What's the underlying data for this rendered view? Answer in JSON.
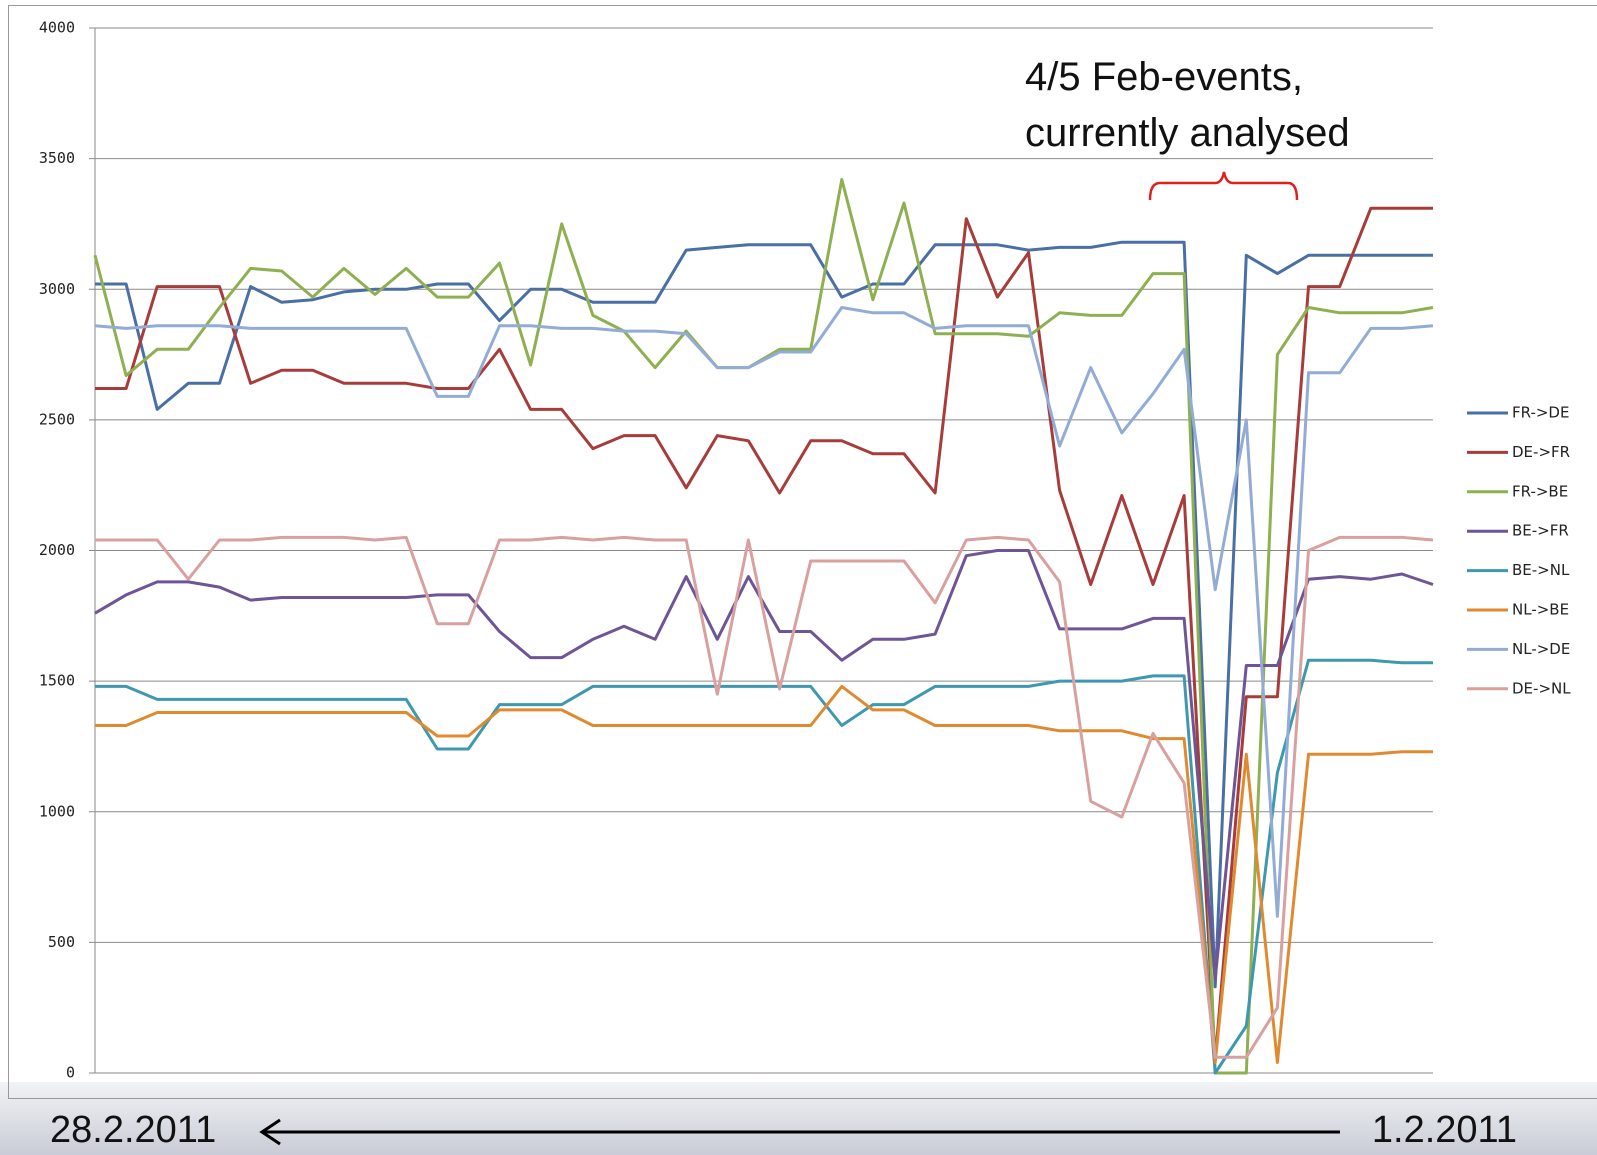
{
  "chart_data": {
    "type": "line",
    "annotations": [
      "4/5 Feb-events,",
      "currently analysed"
    ],
    "footer": {
      "left": "28.2.2011",
      "right": "1.2.2011"
    },
    "ylim": [
      0,
      4000
    ],
    "yticks": [
      0,
      500,
      1000,
      1500,
      2000,
      2500,
      3000,
      3500,
      4000
    ],
    "grid": true,
    "legend": "right",
    "series": [
      {
        "name": "FR->DE",
        "color": "#4a6fa5",
        "values": [
          3020,
          3020,
          2540,
          2640,
          2640,
          3010,
          2950,
          2960,
          2990,
          3000,
          3000,
          3020,
          3020,
          2880,
          3000,
          3000,
          2950,
          2950,
          2950,
          3150,
          3160,
          3170,
          3170,
          3170,
          2970,
          3020,
          3020,
          3170,
          3170,
          3170,
          3150,
          3160,
          3160,
          3180,
          3180,
          3180,
          330,
          3130,
          3060,
          3130,
          3130,
          3130,
          3130,
          3130
        ]
      },
      {
        "name": "DE->FR",
        "color": "#a83c3a",
        "values": [
          2620,
          2620,
          3010,
          3010,
          3010,
          2640,
          2690,
          2690,
          2640,
          2640,
          2640,
          2620,
          2620,
          2770,
          2540,
          2540,
          2390,
          2440,
          2440,
          2240,
          2440,
          2420,
          2220,
          2420,
          2420,
          2370,
          2370,
          2220,
          3270,
          2970,
          3140,
          2230,
          1870,
          2210,
          1870,
          2210,
          50,
          1440,
          1440,
          3010,
          3010,
          3310,
          3310,
          3310
        ]
      },
      {
        "name": "FR->BE",
        "color": "#8fb050",
        "values": [
          3130,
          2670,
          2770,
          2770,
          2930,
          3080,
          3070,
          2970,
          3080,
          2980,
          3080,
          2970,
          2970,
          3100,
          2710,
          3250,
          2900,
          2840,
          2700,
          2840,
          2700,
          2700,
          2770,
          2770,
          3420,
          2960,
          3330,
          2830,
          2830,
          2830,
          2820,
          2910,
          2900,
          2900,
          3060,
          3060,
          0,
          0,
          2750,
          2930,
          2910,
          2910,
          2910,
          2930
        ]
      },
      {
        "name": "BE->FR",
        "color": "#6e5596",
        "values": [
          1760,
          1830,
          1880,
          1880,
          1860,
          1810,
          1820,
          1820,
          1820,
          1820,
          1820,
          1830,
          1830,
          1690,
          1590,
          1590,
          1660,
          1710,
          1660,
          1900,
          1660,
          1900,
          1690,
          1690,
          1580,
          1660,
          1660,
          1680,
          1980,
          2000,
          2000,
          1700,
          1700,
          1700,
          1740,
          1740,
          360,
          1560,
          1560,
          1890,
          1900,
          1890,
          1910,
          1870
        ]
      },
      {
        "name": "BE->NL",
        "color": "#3d98b0",
        "values": [
          1480,
          1480,
          1430,
          1430,
          1430,
          1430,
          1430,
          1430,
          1430,
          1430,
          1430,
          1240,
          1240,
          1410,
          1410,
          1410,
          1480,
          1480,
          1480,
          1480,
          1480,
          1480,
          1480,
          1480,
          1330,
          1410,
          1410,
          1480,
          1480,
          1480,
          1480,
          1500,
          1500,
          1500,
          1520,
          1520,
          0,
          180,
          1150,
          1580,
          1580,
          1580,
          1570,
          1570
        ]
      },
      {
        "name": "NL->BE",
        "color": "#e08a30",
        "values": [
          1330,
          1330,
          1380,
          1380,
          1380,
          1380,
          1380,
          1380,
          1380,
          1380,
          1380,
          1290,
          1290,
          1390,
          1390,
          1390,
          1330,
          1330,
          1330,
          1330,
          1330,
          1330,
          1330,
          1330,
          1480,
          1390,
          1390,
          1330,
          1330,
          1330,
          1330,
          1310,
          1310,
          1310,
          1280,
          1280,
          40,
          1220,
          40,
          1220,
          1220,
          1220,
          1230,
          1230
        ]
      },
      {
        "name": "NL->DE",
        "color": "#92acd6",
        "values": [
          2860,
          2850,
          2860,
          2860,
          2860,
          2850,
          2850,
          2850,
          2850,
          2850,
          2850,
          2590,
          2590,
          2860,
          2860,
          2850,
          2850,
          2840,
          2840,
          2830,
          2700,
          2700,
          2760,
          2760,
          2930,
          2910,
          2910,
          2850,
          2860,
          2860,
          2860,
          2400,
          2700,
          2450,
          2600,
          2770,
          1850,
          2500,
          600,
          2680,
          2680,
          2850,
          2850,
          2860
        ]
      },
      {
        "name": "DE->NL",
        "color": "#d9a0a0",
        "values": [
          2040,
          2040,
          2040,
          1890,
          2040,
          2040,
          2050,
          2050,
          2050,
          2040,
          2050,
          1720,
          1720,
          2040,
          2040,
          2050,
          2040,
          2050,
          2040,
          2040,
          1450,
          2040,
          1470,
          1960,
          1960,
          1960,
          1960,
          1800,
          2040,
          2050,
          2040,
          1880,
          1040,
          980,
          1300,
          1110,
          60,
          60,
          250,
          2000,
          2050,
          2050,
          2050,
          2040
        ]
      }
    ]
  }
}
